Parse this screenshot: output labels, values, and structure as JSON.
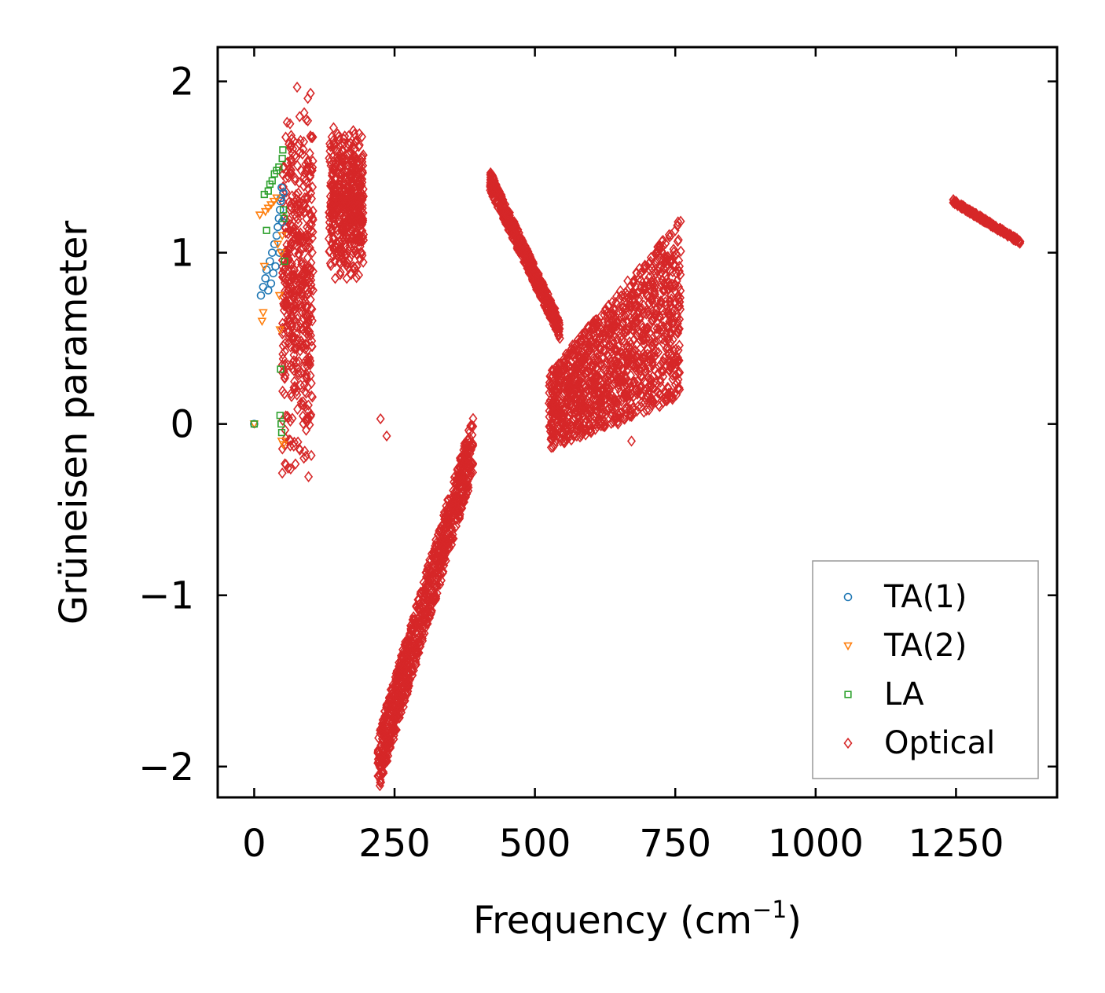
{
  "chart_data": {
    "type": "scatter",
    "title": "",
    "xlabel": "Frequency (cm",
    "xlabel_sup": "−1",
    "xlabel_close": ")",
    "ylabel": "Grüneisen parameter",
    "xlim": [
      -65,
      1430
    ],
    "ylim": [
      -2.18,
      2.2
    ],
    "xticks": [
      0,
      250,
      500,
      750,
      1000,
      1250
    ],
    "xtick_labels": [
      "0",
      "250",
      "500",
      "750",
      "1000",
      "1250"
    ],
    "yticks": [
      -2,
      -1,
      0,
      1,
      2
    ],
    "ytick_labels": [
      "−2",
      "−1",
      "0",
      "1",
      "2"
    ],
    "grid": false,
    "legend_position": "lower-right",
    "series": [
      {
        "name": "TA(1)",
        "marker": "circle",
        "color": "#1f77b4",
        "points": [
          [
            0,
            0.0
          ],
          [
            12,
            0.75
          ],
          [
            16,
            0.8
          ],
          [
            20,
            0.85
          ],
          [
            22,
            0.9
          ],
          [
            25,
            0.78
          ],
          [
            28,
            0.95
          ],
          [
            30,
            0.82
          ],
          [
            32,
            1.0
          ],
          [
            34,
            0.88
          ],
          [
            36,
            1.05
          ],
          [
            38,
            0.92
          ],
          [
            40,
            1.1
          ],
          [
            42,
            1.15
          ],
          [
            44,
            1.2
          ],
          [
            45,
            1.0
          ],
          [
            46,
            1.25
          ],
          [
            47,
            1.3
          ],
          [
            48,
            1.32
          ],
          [
            49,
            1.38
          ],
          [
            50,
            1.18
          ],
          [
            52,
            1.35
          ]
        ]
      },
      {
        "name": "TA(2)",
        "marker": "triangle-down",
        "color": "#ff7f0e",
        "points": [
          [
            0,
            0.0
          ],
          [
            10,
            1.22
          ],
          [
            14,
            0.6
          ],
          [
            16,
            0.65
          ],
          [
            18,
            0.92
          ],
          [
            20,
            1.24
          ],
          [
            25,
            1.26
          ],
          [
            30,
            1.28
          ],
          [
            35,
            1.3
          ],
          [
            40,
            1.32
          ],
          [
            42,
            1.05
          ],
          [
            45,
            0.75
          ],
          [
            46,
            0.55
          ],
          [
            48,
            1.0
          ],
          [
            49,
            -0.1
          ],
          [
            50,
            1.1
          ],
          [
            52,
            -0.12
          ]
        ]
      },
      {
        "name": "LA",
        "marker": "square",
        "color": "#2ca02c",
        "points": [
          [
            0,
            0.0
          ],
          [
            18,
            1.34
          ],
          [
            22,
            1.13
          ],
          [
            25,
            1.36
          ],
          [
            28,
            1.4
          ],
          [
            32,
            1.42
          ],
          [
            36,
            1.46
          ],
          [
            40,
            1.48
          ],
          [
            44,
            1.5
          ],
          [
            46,
            0.05
          ],
          [
            47,
            0.32
          ],
          [
            48,
            0.0
          ],
          [
            49,
            -0.05
          ],
          [
            50,
            1.55
          ],
          [
            51,
            1.6
          ],
          [
            52,
            1.25
          ],
          [
            53,
            1.2
          ],
          [
            54,
            0.95
          ]
        ]
      },
      {
        "name": "Optical",
        "marker": "diamond",
        "color": "#d62728",
        "clusters": [
          {
            "x": [
              50,
              105
            ],
            "y": [
              -0.38,
              2.02
            ]
          },
          {
            "x": [
              133,
              195
            ],
            "y": [
              0.82,
              1.75
            ]
          },
          {
            "x": [
              220,
              390
            ],
            "y": [
              -1.98,
              -0.12
            ]
          },
          {
            "x": [
              420,
              545
            ],
            "y": [
              0.55,
              1.42
            ]
          },
          {
            "x": [
              525,
              760
            ],
            "y": [
              -0.15,
              1.32
            ]
          },
          {
            "x": [
              1245,
              1365
            ],
            "y": [
              1.06,
              1.3
            ]
          }
        ],
        "outliers": [
          [
            225,
            0.03
          ],
          [
            236,
            -0.07
          ],
          [
            85,
            0.45
          ],
          [
            600,
            -0.05
          ],
          [
            672,
            -0.1
          ],
          [
            648,
            0.0
          ]
        ]
      }
    ]
  }
}
